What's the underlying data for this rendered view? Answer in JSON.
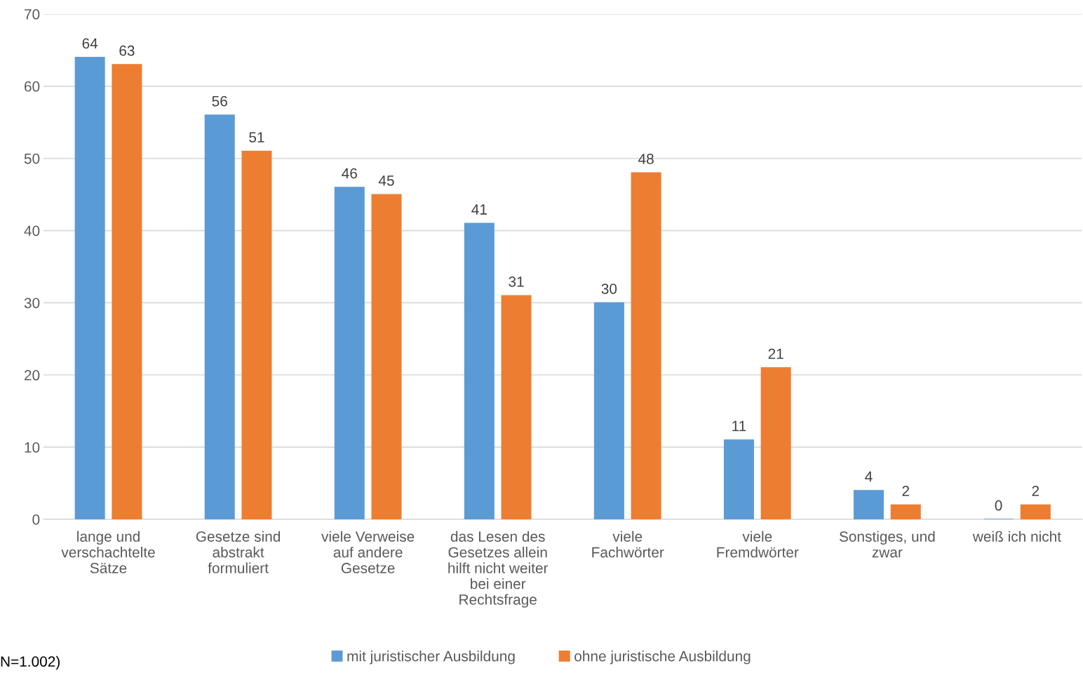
{
  "chart_data": {
    "type": "bar",
    "categories": [
      "lange und\nverschachtelte\nSätze",
      "Gesetze sind\nabstrakt\nformuliert",
      "viele Verweise\nauf andere\nGesetze",
      "das Lesen des\nGesetzes allein\nhilft nicht weiter\nbei einer\nRechtsfrage",
      "viele\nFachwörter",
      "viele\nFremdwörter",
      "Sonstiges, und\nzwar",
      "weiß ich nicht"
    ],
    "series": [
      {
        "name": "mit juristischer Ausbildung",
        "color": "#5b9bd5",
        "values": [
          64,
          56,
          46,
          41,
          30,
          11,
          4,
          0
        ]
      },
      {
        "name": "ohne juristische Ausbildung",
        "color": "#ed7d31",
        "values": [
          63,
          51,
          45,
          31,
          48,
          21,
          2,
          2
        ]
      }
    ],
    "ylim": [
      0,
      70
    ],
    "yticks": [
      0,
      10,
      20,
      30,
      40,
      50,
      60,
      70
    ],
    "grid": "y",
    "legend": "bottom",
    "data_labels": true,
    "annotations": [
      "N=1.002)"
    ]
  }
}
